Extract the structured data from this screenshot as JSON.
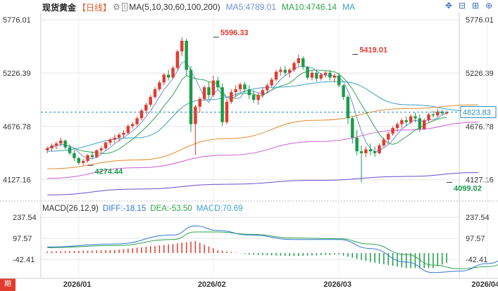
{
  "header": {
    "title": "现货黄金",
    "period": "【日线】",
    "ma_label": "MA(5,10,30,60,100,200)",
    "ma5_label": "MA5:4789.01",
    "ma10_label": "MA10:4746.14",
    "ma_more": "MA"
  },
  "macd_header": {
    "name": "MACD(26,12,9)",
    "diff": "DIFF:-18.15",
    "dea": "DEA:-53.50",
    "macd": "MACD:70.69"
  },
  "toolbar": {
    "icons": [
      "move-icon",
      "shrink-icon",
      "expand-icon",
      "zoom-icon"
    ]
  },
  "badge": "期",
  "colors": {
    "up": "#e23b2e",
    "down": "#1a9c4a",
    "ma5": "#6a8fd6",
    "ma10": "#2ea44f",
    "ma30": "#3aa0c6",
    "ma60": "#e08a2e",
    "ma100": "#cf5bd6",
    "ma200": "#6a4ccc",
    "diff": "#2d78d6",
    "dea": "#2ea44f",
    "price_line": "#2a8fb8",
    "grid": "#e5e5e5"
  },
  "chart_data": {
    "type": "candlestick",
    "title": "现货黄金 日线",
    "y_ticks": [
      "5776.01",
      "5226.39",
      "4676.78",
      "4127.16"
    ],
    "y_tick_values": [
      5776.01,
      5226.39,
      4676.78,
      4127.16
    ],
    "ylim": [
      3950,
      5850
    ],
    "x_ticks": [
      "2026/01",
      "2026/02",
      "2026/03",
      "2026/04"
    ],
    "x_tick_index": [
      7,
      37,
      65,
      98
    ],
    "current_price": 4823.83,
    "current_price_label": "4823.83",
    "annotations": [
      {
        "label": "5596.33",
        "value": 5596.33,
        "index": 37,
        "color": "#e23b2e"
      },
      {
        "label": "5419.01",
        "value": 5419.01,
        "index": 68,
        "color": "#e23b2e"
      },
      {
        "label": "4274.44",
        "value": 4274.44,
        "index": 9,
        "color": "#1a9c4a"
      },
      {
        "label": "4099.02",
        "value": 4099.02,
        "index": 89,
        "color": "#1a9c4a"
      }
    ],
    "candles": [
      [
        4430,
        4470,
        4400,
        4450
      ],
      [
        4450,
        4500,
        4420,
        4480
      ],
      [
        4480,
        4520,
        4440,
        4500
      ],
      [
        4500,
        4560,
        4470,
        4530
      ],
      [
        4530,
        4540,
        4440,
        4460
      ],
      [
        4460,
        4490,
        4380,
        4400
      ],
      [
        4400,
        4430,
        4320,
        4350
      ],
      [
        4350,
        4360,
        4280,
        4300
      ],
      [
        4300,
        4340,
        4274,
        4320
      ],
      [
        4320,
        4390,
        4300,
        4380
      ],
      [
        4380,
        4420,
        4340,
        4360
      ],
      [
        4360,
        4440,
        4350,
        4430
      ],
      [
        4430,
        4470,
        4400,
        4450
      ],
      [
        4450,
        4520,
        4430,
        4510
      ],
      [
        4510,
        4560,
        4480,
        4540
      ],
      [
        4540,
        4590,
        4510,
        4560
      ],
      [
        4560,
        4610,
        4520,
        4590
      ],
      [
        4590,
        4640,
        4560,
        4610
      ],
      [
        4610,
        4700,
        4590,
        4680
      ],
      [
        4680,
        4720,
        4650,
        4700
      ],
      [
        4700,
        4780,
        4680,
        4760
      ],
      [
        4760,
        4860,
        4740,
        4840
      ],
      [
        4840,
        4920,
        4800,
        4900
      ],
      [
        4900,
        5000,
        4880,
        4980
      ],
      [
        4980,
        5080,
        4960,
        5060
      ],
      [
        5060,
        5150,
        5040,
        5130
      ],
      [
        5130,
        5230,
        5100,
        5210
      ],
      [
        5210,
        5260,
        5150,
        5180
      ],
      [
        5180,
        5300,
        5170,
        5280
      ],
      [
        5280,
        5470,
        5260,
        5450
      ],
      [
        5450,
        5596,
        5400,
        5560
      ],
      [
        5560,
        5580,
        5200,
        5260
      ],
      [
        5260,
        5300,
        4620,
        4700
      ],
      [
        4700,
        4900,
        4380,
        4880
      ],
      [
        4880,
        4980,
        4820,
        4960
      ],
      [
        4960,
        5100,
        4940,
        5080
      ],
      [
        5080,
        5140,
        4950,
        5000
      ],
      [
        5000,
        5200,
        4980,
        5150
      ],
      [
        5150,
        5190,
        5050,
        5080
      ],
      [
        5080,
        5120,
        4680,
        4720
      ],
      [
        4720,
        4960,
        4700,
        4930
      ],
      [
        4930,
        5060,
        4910,
        5030
      ],
      [
        5030,
        5100,
        4980,
        5060
      ],
      [
        5060,
        5130,
        5030,
        5110
      ],
      [
        5110,
        5140,
        5030,
        5060
      ],
      [
        5060,
        5100,
        4960,
        5000
      ],
      [
        5000,
        5050,
        4920,
        4950
      ],
      [
        4950,
        5020,
        4900,
        5000
      ],
      [
        5000,
        5080,
        4970,
        5050
      ],
      [
        5050,
        5120,
        5020,
        5100
      ],
      [
        5100,
        5180,
        5080,
        5160
      ],
      [
        5160,
        5260,
        5140,
        5240
      ],
      [
        5240,
        5290,
        5200,
        5260
      ],
      [
        5260,
        5300,
        5200,
        5230
      ],
      [
        5230,
        5280,
        5180,
        5260
      ],
      [
        5260,
        5350,
        5240,
        5330
      ],
      [
        5330,
        5419,
        5300,
        5380
      ],
      [
        5380,
        5400,
        5260,
        5290
      ],
      [
        5290,
        5300,
        5160,
        5180
      ],
      [
        5180,
        5250,
        5150,
        5230
      ],
      [
        5230,
        5260,
        5140,
        5170
      ],
      [
        5170,
        5230,
        5150,
        5210
      ],
      [
        5210,
        5250,
        5180,
        5230
      ],
      [
        5230,
        5260,
        5150,
        5180
      ],
      [
        5180,
        5220,
        5130,
        5200
      ],
      [
        5200,
        5230,
        5080,
        5100
      ],
      [
        5100,
        5110,
        4950,
        4980
      ],
      [
        4980,
        5000,
        4700,
        4760
      ],
      [
        4760,
        4780,
        4500,
        4560
      ],
      [
        4560,
        4640,
        4380,
        4420
      ],
      [
        4420,
        4480,
        4099,
        4400
      ],
      [
        4400,
        4470,
        4360,
        4440
      ],
      [
        4440,
        4500,
        4380,
        4420
      ],
      [
        4420,
        4470,
        4360,
        4400
      ],
      [
        4400,
        4500,
        4390,
        4480
      ],
      [
        4480,
        4560,
        4460,
        4540
      ],
      [
        4540,
        4620,
        4500,
        4600
      ],
      [
        4600,
        4680,
        4580,
        4660
      ],
      [
        4660,
        4720,
        4620,
        4700
      ],
      [
        4700,
        4760,
        4660,
        4740
      ],
      [
        4740,
        4780,
        4680,
        4720
      ],
      [
        4720,
        4800,
        4700,
        4780
      ],
      [
        4780,
        4820,
        4720,
        4760
      ],
      [
        4760,
        4800,
        4620,
        4650
      ],
      [
        4650,
        4760,
        4640,
        4740
      ],
      [
        4740,
        4820,
        4720,
        4800
      ],
      [
        4800,
        4840,
        4770,
        4790
      ],
      [
        4790,
        4860,
        4770,
        4830
      ],
      [
        4830,
        4850,
        4790,
        4810
      ],
      [
        4810,
        4840,
        4800,
        4824
      ]
    ],
    "ma_lines": [
      {
        "name": "MA5",
        "color_key": "ma5",
        "start": 4460,
        "end": 4789
      },
      {
        "name": "MA10",
        "color_key": "ma10",
        "start": 4440,
        "end": 4746
      }
    ],
    "ma_smooth": [
      {
        "name": "MA30",
        "color_key": "ma30",
        "points": [
          [
            0,
            4420
          ],
          [
            20,
            4560
          ],
          [
            35,
            4950
          ],
          [
            50,
            5080
          ],
          [
            65,
            5140
          ],
          [
            80,
            4900
          ],
          [
            96,
            4830
          ]
        ]
      },
      {
        "name": "MA60",
        "color_key": "ma60",
        "points": [
          [
            0,
            4240
          ],
          [
            20,
            4330
          ],
          [
            40,
            4550
          ],
          [
            60,
            4740
          ],
          [
            80,
            4860
          ],
          [
            96,
            4900
          ]
        ]
      },
      {
        "name": "MA100",
        "color_key": "ma100",
        "points": [
          [
            0,
            4140
          ],
          [
            20,
            4250
          ],
          [
            40,
            4380
          ],
          [
            60,
            4520
          ],
          [
            80,
            4640
          ],
          [
            96,
            4720
          ]
        ]
      },
      {
        "name": "MA200",
        "color_key": "ma200",
        "points": [
          [
            0,
            3970
          ],
          [
            20,
            4030
          ],
          [
            40,
            4080
          ],
          [
            60,
            4120
          ],
          [
            80,
            4160
          ],
          [
            96,
            4200
          ]
        ]
      }
    ],
    "macd": {
      "y_ticks": [
        "237.54",
        "97.57",
        "-42.41"
      ],
      "y_tick_values": [
        237.54,
        97.57,
        -42.41
      ],
      "ylim": [
        -140,
        280
      ],
      "diff_points": [
        [
          0,
          40
        ],
        [
          15,
          60
        ],
        [
          28,
          120
        ],
        [
          33,
          180
        ],
        [
          38,
          150
        ],
        [
          45,
          120
        ],
        [
          55,
          90
        ],
        [
          65,
          90
        ],
        [
          72,
          30
        ],
        [
          80,
          -60
        ],
        [
          86,
          -130
        ],
        [
          92,
          -120
        ],
        [
          98,
          -70
        ],
        [
          104,
          -18
        ]
      ],
      "dea_points": [
        [
          0,
          35
        ],
        [
          15,
          50
        ],
        [
          28,
          90
        ],
        [
          33,
          140
        ],
        [
          38,
          140
        ],
        [
          45,
          125
        ],
        [
          55,
          100
        ],
        [
          65,
          95
        ],
        [
          72,
          60
        ],
        [
          80,
          -10
        ],
        [
          86,
          -80
        ],
        [
          92,
          -105
        ],
        [
          98,
          -90
        ],
        [
          104,
          -53.5
        ]
      ]
    }
  }
}
